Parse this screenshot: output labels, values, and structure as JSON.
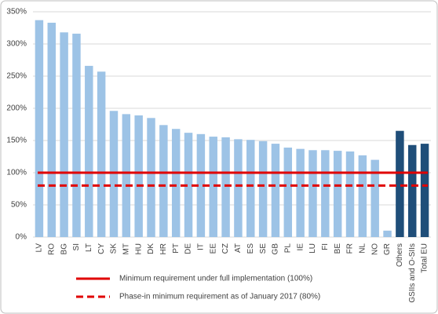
{
  "chart_data": {
    "type": "bar",
    "categories": [
      "LV",
      "RO",
      "BG",
      "SI",
      "LT",
      "CY",
      "SK",
      "MT",
      "HU",
      "DK",
      "HR",
      "PT",
      "DE",
      "IT",
      "EE",
      "CZ",
      "AT",
      "ES",
      "SE",
      "GB",
      "PL",
      "IE",
      "LU",
      "FI",
      "BE",
      "FR",
      "NL",
      "NO",
      "GR",
      "Others",
      "GSIIs and O-SIIs",
      "Total EU"
    ],
    "values": [
      337,
      333,
      318,
      316,
      266,
      257,
      196,
      191,
      189,
      185,
      174,
      168,
      162,
      160,
      156,
      155,
      152,
      151,
      149,
      145,
      139,
      137,
      135,
      135,
      134,
      133,
      127,
      120,
      10,
      165,
      143,
      145
    ],
    "colors": [
      "#9dc3e6",
      "#9dc3e6",
      "#9dc3e6",
      "#9dc3e6",
      "#9dc3e6",
      "#9dc3e6",
      "#9dc3e6",
      "#9dc3e6",
      "#9dc3e6",
      "#9dc3e6",
      "#9dc3e6",
      "#9dc3e6",
      "#9dc3e6",
      "#9dc3e6",
      "#9dc3e6",
      "#9dc3e6",
      "#9dc3e6",
      "#9dc3e6",
      "#9dc3e6",
      "#9dc3e6",
      "#9dc3e6",
      "#9dc3e6",
      "#9dc3e6",
      "#9dc3e6",
      "#9dc3e6",
      "#9dc3e6",
      "#9dc3e6",
      "#9dc3e6",
      "#9dc3e6",
      "#1f4e79",
      "#1f4e79",
      "#1f4e79"
    ],
    "ylim": [
      0,
      350
    ],
    "yticks": [
      {
        "value": 0,
        "label": "0%"
      },
      {
        "value": 50,
        "label": "50%"
      },
      {
        "value": 100,
        "label": "100%"
      },
      {
        "value": 150,
        "label": "150%"
      },
      {
        "value": 200,
        "label": "200%"
      },
      {
        "value": 250,
        "label": "250%"
      },
      {
        "value": 300,
        "label": "300%"
      },
      {
        "value": 350,
        "label": "350%"
      }
    ],
    "grid": true,
    "reference_lines": [
      {
        "name": "Minimum requirement under full implementation (100%)",
        "value": 100,
        "color": "#e00000",
        "style": "solid"
      },
      {
        "name": "Phase-in minimum requirement as of January 2017 (80%)",
        "value": 80,
        "color": "#e00000",
        "style": "dashed"
      }
    ]
  }
}
